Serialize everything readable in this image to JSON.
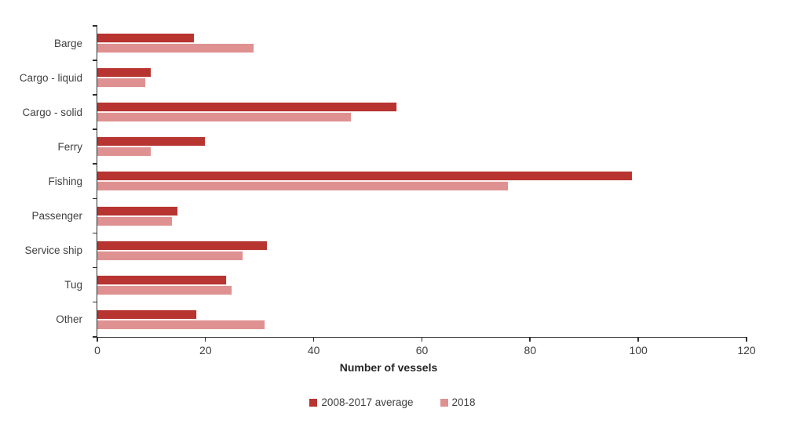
{
  "chart_data": {
    "type": "bar",
    "orientation": "horizontal",
    "title": "",
    "xlabel": "Number of vessels",
    "ylabel": "",
    "xlim": [
      0,
      120
    ],
    "xticks": [
      0,
      20,
      40,
      60,
      80,
      100,
      120
    ],
    "grid": false,
    "legend_position": "bottom",
    "categories": [
      "Barge",
      "Cargo - liquid",
      "Cargo - solid",
      "Ferry",
      "Fishing",
      "Passenger",
      "Service ship",
      "Tug",
      "Other"
    ],
    "series": [
      {
        "name": "2008-2017 average",
        "color": "#b73431",
        "values": [
          18,
          10,
          55.5,
          20,
          99,
          15,
          31.5,
          24,
          18.5
        ]
      },
      {
        "name": "2018",
        "color": "#df9192",
        "values": [
          29,
          9,
          47,
          10,
          76,
          14,
          27,
          25,
          31
        ]
      }
    ],
    "axis_color": "#2e2e2e",
    "text_color": "#3f3f3f"
  }
}
